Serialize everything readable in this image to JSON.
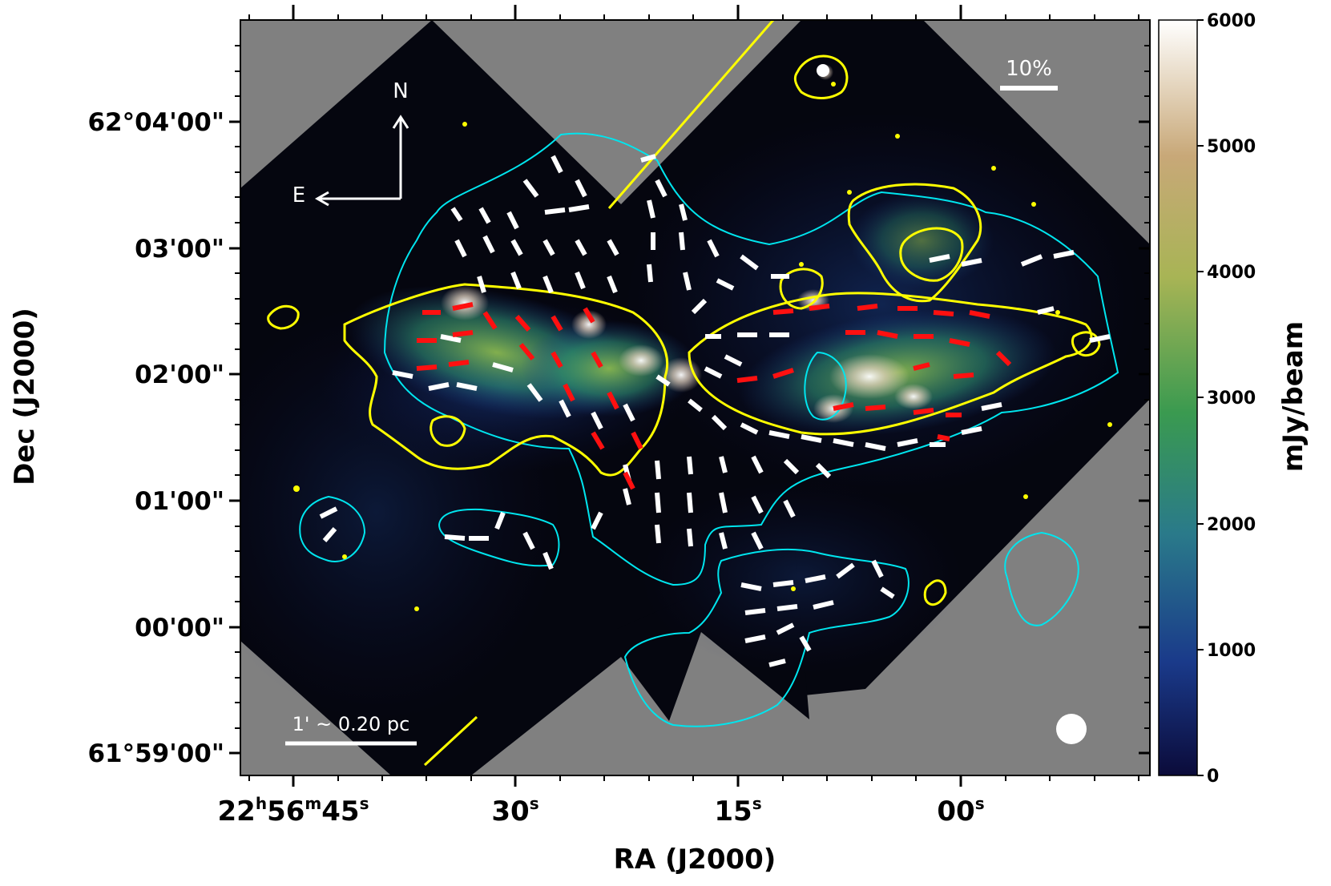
{
  "figure": {
    "x_axis": {
      "label": "RA (J2000)",
      "ticks": [
        {
          "main": "22",
          "sup1": "h",
          "mid": "56",
          "sup2": "m",
          "tail": "45",
          "sup3": "s"
        },
        {
          "main": "30",
          "sup1": "s"
        },
        {
          "main": "15",
          "sup1": "s"
        },
        {
          "main": "00",
          "sup1": "s"
        }
      ]
    },
    "y_axis": {
      "label": "Dec (J2000)",
      "ticks": [
        "62°04'00\"",
        "03'00\"",
        "02'00\"",
        "01'00\"",
        "00'00\"",
        "61°59'00\""
      ]
    },
    "colorbar": {
      "label": "mJy/beam",
      "ticks": [
        "6000",
        "5000",
        "4000",
        "3000",
        "2000",
        "1000",
        "0"
      ],
      "range": [
        0,
        6000
      ],
      "colormap": [
        "#0b0b3a",
        "#1a3a8a",
        "#2a7a8a",
        "#3a9a50",
        "#a8b455",
        "#c8a878",
        "#ffffff"
      ]
    },
    "annotations": {
      "north": "N",
      "east": "E",
      "scale_bar": "1' ~ 0.20 pc",
      "polarization_scale": "10%"
    },
    "colors": {
      "background_masked": "#808080",
      "dust_contour": "#ffff00",
      "cyan_contour": "#00e5ee",
      "vectors_white": "#ffffff",
      "vectors_red": "#ff1010"
    }
  }
}
